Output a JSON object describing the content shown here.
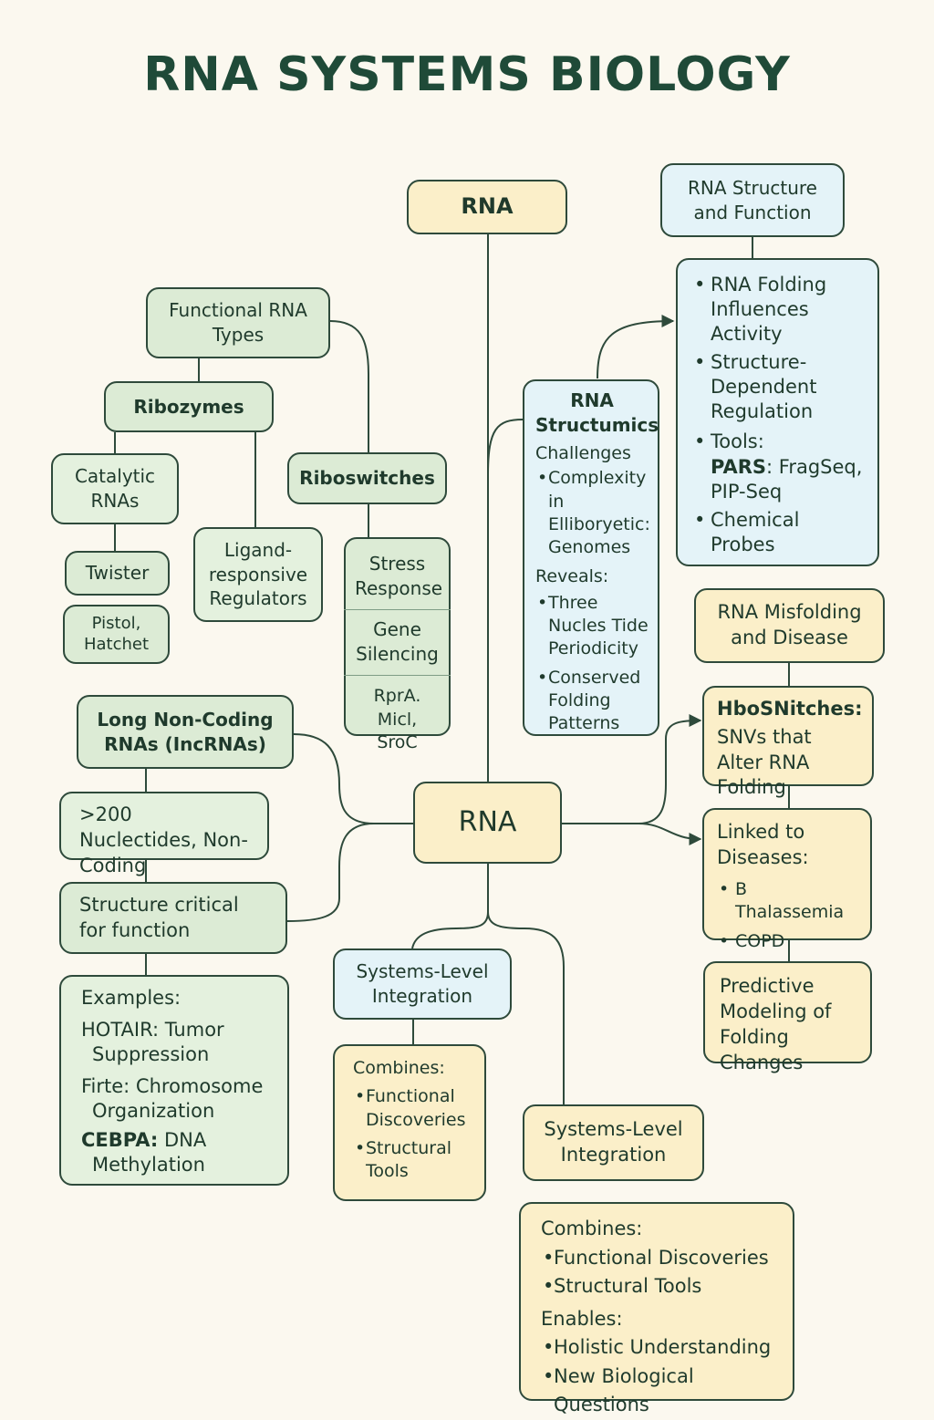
{
  "title": "RNA SYSTEMS BIOLOGY",
  "nodes": {
    "rna_top": "RNA",
    "rna_center": "RNA",
    "structure_function": "RNA Structure and Function",
    "structure_details": {
      "items": [
        "RNA Folding Influences Activity",
        "Structure-Dependent Regulation"
      ],
      "tools_label": "Tools:",
      "tools_bold": "PARS",
      "tools_rest": ": FragSeq, PIP-Seq",
      "last_item": "Chemical Probes"
    },
    "structumics": {
      "title": "RNA Structumics",
      "challenges_label": "Challenges",
      "challenges": [
        "Complexity in Elliboryetic: Genomes"
      ],
      "reveals_label": "Reveals:",
      "reveals": [
        "Three Nucles Tide Periodicity",
        "Conserved Folding Patterns"
      ]
    },
    "functional_types": "Functional RNA Types",
    "ribozymes": "Ribozymes",
    "catalytic": "Catalytic RNAs",
    "twister": "Twister",
    "pistol": "Pistol, Hatchet",
    "ligand": "Ligand-responsive Regulators",
    "riboswitches": "Riboswitches",
    "stress": "Stress Response",
    "gene_silencing": "Gene Silencing",
    "rpra": "RprA. Micl, SroC",
    "lncrna": "Long Non-Coding RNAs (IncRNAs)",
    "nucleotides": ">200 Nuclectides, Non-Coding",
    "structure_critical": "Structure critical for function",
    "examples": {
      "label": "Examples:",
      "items": [
        {
          "name": "HOTAIR:",
          "rest": " Tumor",
          "cont": "Suppression"
        },
        {
          "name": "Firte:",
          "rest": " Chromosome",
          "cont": "Organization"
        },
        {
          "name": "CEBPA:",
          "rest": " DNA",
          "cont": "Methylation"
        }
      ]
    },
    "misfolding": "RNA Misfolding and Disease",
    "hbosnitches": {
      "title": "HboSNitches:",
      "text": "SNVs that Alter RNA Folding"
    },
    "linked": {
      "title": "Linked to Diseases:",
      "items": [
        "B Thalassemia",
        "COPD"
      ]
    },
    "predictive": "Predictive Modeling of Folding Changes",
    "systems_left": "Systems-Level Integration",
    "combines_left": {
      "label": "Combines:",
      "items": [
        "Functional Discoveries",
        "Structural Tools"
      ]
    },
    "systems_right": "Systems-Level Integration",
    "combines_right": {
      "label": "Combines:",
      "items": [
        "Functional Discoveries",
        "Structural Tools"
      ],
      "enables_label": "Enables:",
      "enables": [
        "Holistic Understanding",
        "New Biological Questions"
      ]
    }
  },
  "colors": {
    "green": "#dcebd5",
    "yellow": "#fbefc9",
    "blue": "#e4f3f8",
    "border": "#2e4a3b",
    "title": "#1f4a38"
  }
}
